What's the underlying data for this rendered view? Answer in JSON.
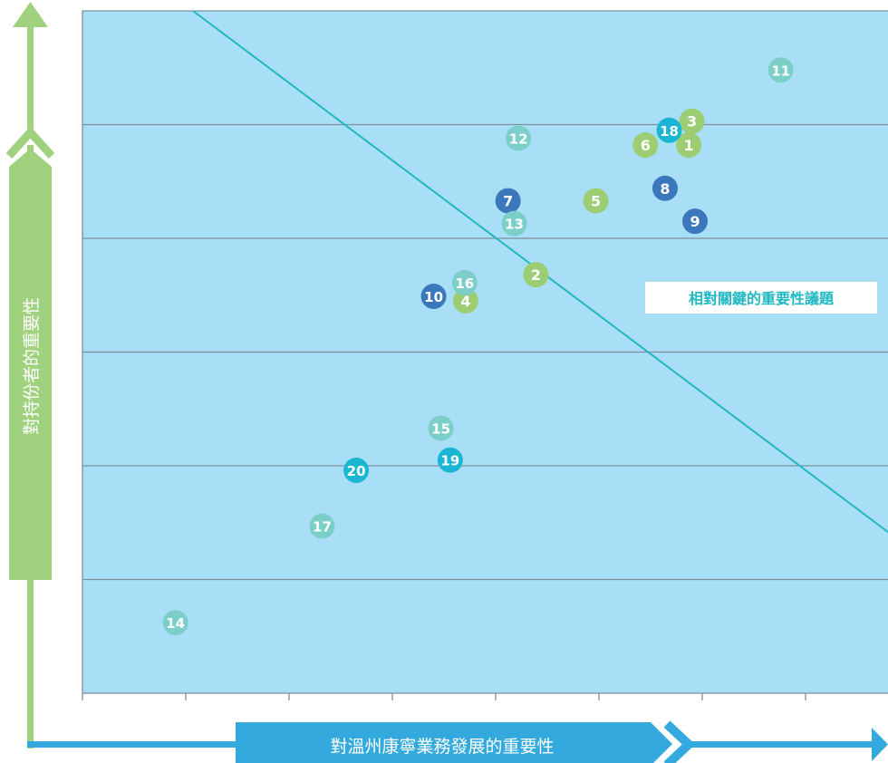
{
  "chart_data": {
    "type": "scatter",
    "xlabel": "對溫州康寧業務發展的重要性",
    "ylabel": "對持份者的重要性",
    "threshold_label": "相對關鍵的重要性議題",
    "grid": true,
    "xlim": [
      0,
      8
    ],
    "ylim": [
      0,
      6
    ],
    "threshold_line": {
      "x1": 1.07,
      "y1": 6.0,
      "x2": 8.0,
      "y2": 1.28
    },
    "colors": {
      "background": "#a9dff6",
      "grid": "#7f8f99",
      "y_axis": "#9fd17f",
      "x_axis": "#33a9dd",
      "threshold": "#20b8c2",
      "label_fill": "#ffffff",
      "label_text": "#20b8c2",
      "point_text": "#ffffff"
    },
    "categories": {
      "green": "#9ccd73",
      "teal": "#7ccfc8",
      "cyan": "#1ab6d4",
      "blue": "#3a77bb"
    },
    "points": [
      {
        "id": "1",
        "x": 5.87,
        "y": 4.82,
        "color": "green"
      },
      {
        "id": "2",
        "x": 4.39,
        "y": 3.68,
        "color": "green"
      },
      {
        "id": "3",
        "x": 5.9,
        "y": 5.03,
        "color": "green"
      },
      {
        "id": "4",
        "x": 3.71,
        "y": 3.45,
        "color": "green"
      },
      {
        "id": "5",
        "x": 4.97,
        "y": 4.33,
        "color": "green"
      },
      {
        "id": "6",
        "x": 5.45,
        "y": 4.82,
        "color": "green"
      },
      {
        "id": "7",
        "x": 4.12,
        "y": 4.33,
        "color": "blue"
      },
      {
        "id": "8",
        "x": 5.64,
        "y": 4.44,
        "color": "blue"
      },
      {
        "id": "9",
        "x": 5.93,
        "y": 4.15,
        "color": "blue"
      },
      {
        "id": "10",
        "x": 3.4,
        "y": 3.49,
        "color": "blue"
      },
      {
        "id": "11",
        "x": 6.76,
        "y": 5.48,
        "color": "teal"
      },
      {
        "id": "12",
        "x": 4.22,
        "y": 4.88,
        "color": "teal"
      },
      {
        "id": "13",
        "x": 4.18,
        "y": 4.13,
        "color": "teal"
      },
      {
        "id": "14",
        "x": 0.9,
        "y": 0.62,
        "color": "teal"
      },
      {
        "id": "15",
        "x": 3.47,
        "y": 2.33,
        "color": "teal"
      },
      {
        "id": "16",
        "x": 3.7,
        "y": 3.61,
        "color": "teal"
      },
      {
        "id": "17",
        "x": 2.32,
        "y": 1.47,
        "color": "teal"
      },
      {
        "id": "18",
        "x": 5.68,
        "y": 4.95,
        "color": "cyan"
      },
      {
        "id": "19",
        "x": 3.56,
        "y": 2.05,
        "color": "cyan"
      },
      {
        "id": "20",
        "x": 2.65,
        "y": 1.96,
        "color": "cyan"
      }
    ]
  }
}
